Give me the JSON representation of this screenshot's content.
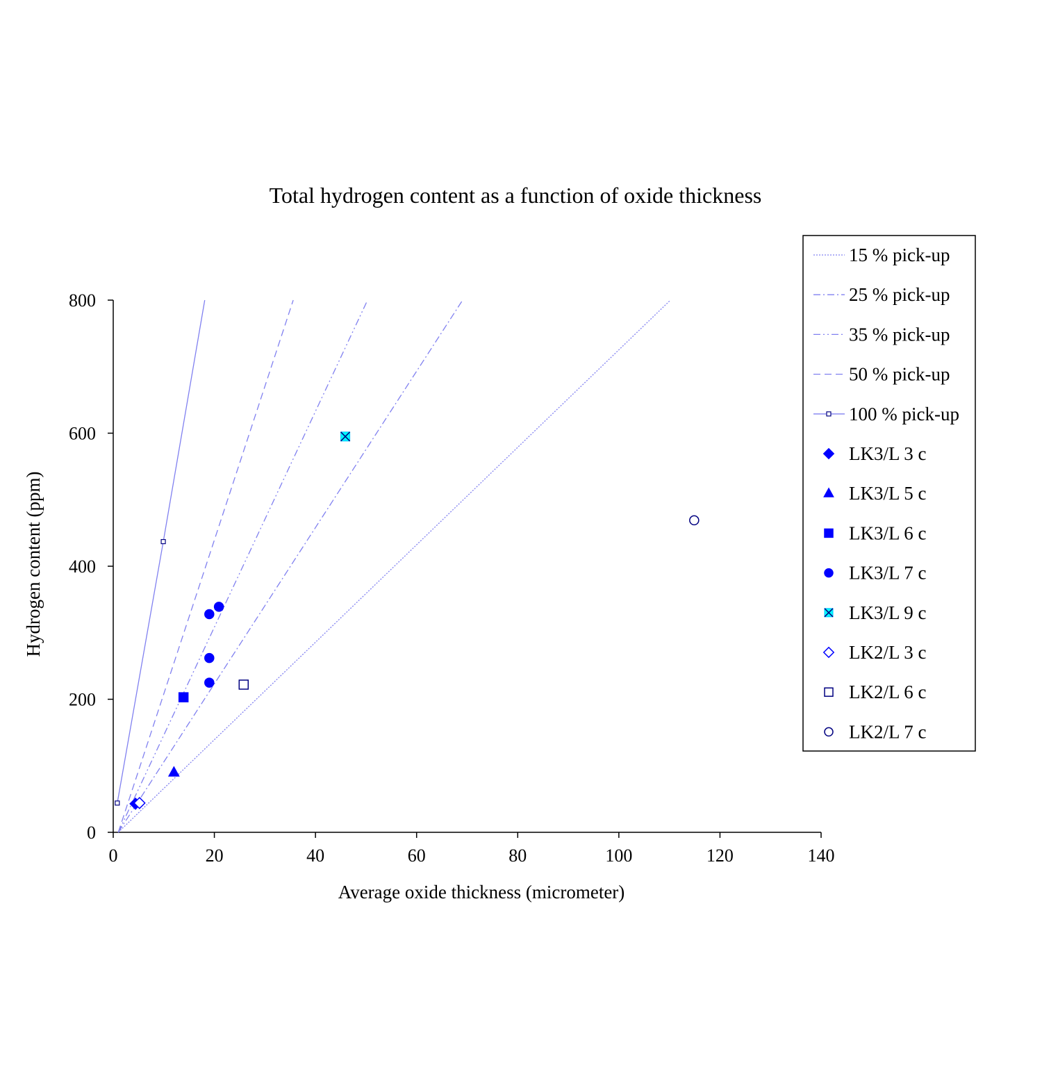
{
  "chart_data": {
    "type": "scatter",
    "title": "Total  hydrogen content as a function of oxide thickness",
    "xlabel": "Average  oxide thickness  (micrometer)",
    "ylabel": "Hydrogen  content  (ppm)",
    "xlim": [
      0,
      140
    ],
    "ylim": [
      0,
      800
    ],
    "xticks": [
      "0",
      "20",
      "40",
      "60",
      "80",
      "100",
      "120",
      "140"
    ],
    "yticks": [
      "0",
      "200",
      "400",
      "600",
      "800"
    ],
    "grid": false,
    "legend": "right",
    "line_color": "#8080f0",
    "lines": [
      {
        "name": "15 % pick-up",
        "style": "dotted",
        "points": [
          [
            1,
            0
          ],
          [
            110.2,
            800
          ]
        ]
      },
      {
        "name": "25 % pick-up",
        "style": "dashdot",
        "points": [
          [
            1,
            0
          ],
          [
            69.1,
            800
          ]
        ]
      },
      {
        "name": "35 % pick-up",
        "style": "dashdotdot",
        "points": [
          [
            1,
            0
          ],
          [
            50.3,
            800
          ]
        ]
      },
      {
        "name": "50 % pick-up",
        "style": "dashed",
        "points": [
          [
            1,
            0
          ],
          [
            35.6,
            800
          ]
        ]
      },
      {
        "name": "100 % pick-up",
        "style": "solid-marker",
        "points": [
          [
            0.8,
            44
          ],
          [
            9.9,
            437
          ],
          [
            18.1,
            800
          ]
        ],
        "markers": [
          [
            0.8,
            44
          ],
          [
            9.9,
            437
          ]
        ]
      }
    ],
    "series": [
      {
        "name": "LK3/L 3 c",
        "marker": "diamond",
        "filled": true,
        "color": "#0000ff",
        "points": [
          [
            4.4,
            43
          ]
        ]
      },
      {
        "name": "LK3/L 5 c",
        "marker": "triangle",
        "filled": true,
        "color": "#0000ff",
        "points": [
          [
            12.0,
            90
          ]
        ]
      },
      {
        "name": "LK3/L 6 c",
        "marker": "square",
        "filled": true,
        "color": "#0000ff",
        "points": [
          [
            13.9,
            203
          ]
        ]
      },
      {
        "name": "LK3/L 7 c",
        "marker": "circle",
        "filled": true,
        "color": "#0000ff",
        "points": [
          [
            19.0,
            328
          ],
          [
            20.9,
            339
          ],
          [
            19.0,
            262
          ],
          [
            19.0,
            225
          ]
        ]
      },
      {
        "name": "LK3/L 9 c",
        "marker": "x-square",
        "filled": true,
        "color": "#00ffff",
        "points": [
          [
            45.9,
            595
          ]
        ]
      },
      {
        "name": "LK2/L 3 c",
        "marker": "diamond",
        "filled": false,
        "color": "#0000ff",
        "points": [
          [
            5.2,
            44
          ]
        ]
      },
      {
        "name": "LK2/L 6 c",
        "marker": "square",
        "filled": false,
        "color": "#000080",
        "points": [
          [
            25.8,
            222
          ]
        ]
      },
      {
        "name": "LK2/L 7 c",
        "marker": "circle",
        "filled": false,
        "color": "#000080",
        "points": [
          [
            114.9,
            469
          ]
        ]
      }
    ]
  }
}
